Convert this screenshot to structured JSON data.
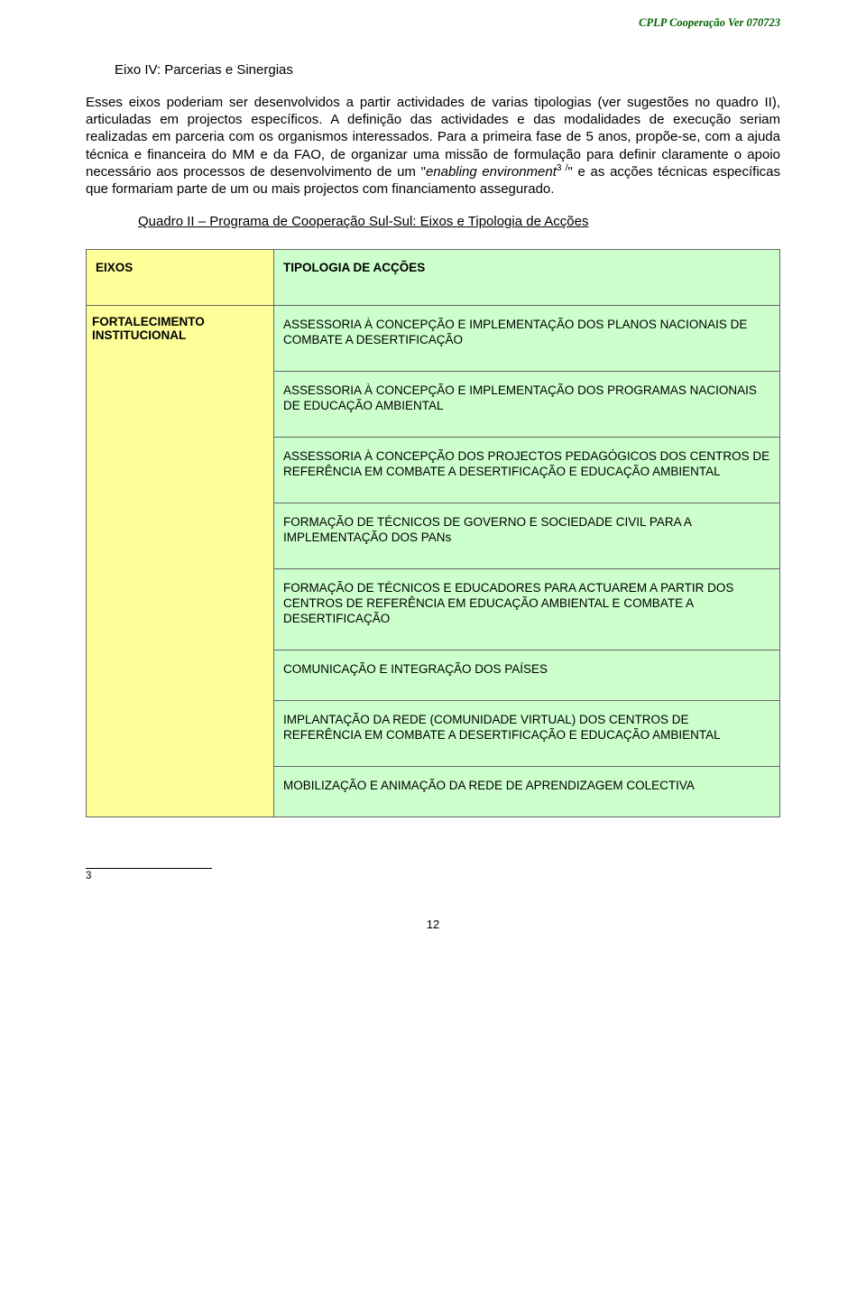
{
  "header": "CPLP Cooperação Ver 070723",
  "section_title": "Eixo IV: Parcerias e Sinergias",
  "paragraph_part1": "Esses eixos poderiam ser desenvolvidos a partir actividades de varias tipologias (ver sugestões no quadro II), articuladas em projectos específicos. A definição das actividades e das modalidades de execução seriam realizadas em parceria com os organismos interessados. Para a primeira fase de 5 anos, propõe-se, com a ajuda técnica e financeira do MM e da FAO, de organizar uma missão de formulação para definir claramente o apoio necessário aos processos de desenvolvimento de um \"",
  "paragraph_italic": "enabling environment",
  "paragraph_super": "3 /",
  "paragraph_part2": "\" e as acções técnicas específicas que formariam parte de um ou mais projectos com financiamento assegurado.",
  "subtitle": "Quadro II – Programa de Cooperação Sul-Sul: Eixos e Tipologia de Acções",
  "table": {
    "col_eixos": "EIXOS",
    "col_tipo": "TIPOLOGIA DE ACÇÕES",
    "eixo_label": "FORTALECIMENTO INSTITUCIONAL",
    "actions": [
      "ASSESSORIA À CONCEPÇÃO E IMPLEMENTAÇÃO DOS PLANOS NACIONAIS DE COMBATE A DESERTIFICAÇÃO",
      "ASSESSORIA À CONCEPÇÃO E IMPLEMENTAÇÃO DOS PROGRAMAS NACIONAIS DE EDUCAÇÃO AMBIENTAL",
      "ASSESSORIA À CONCEPÇÃO DOS PROJECTOS PEDAGÓGICOS DOS CENTROS DE REFERÊNCIA EM COMBATE A DESERTIFICAÇÃO E EDUCAÇÃO AMBIENTAL",
      "FORMAÇÃO DE TÉCNICOS DE GOVERNO E SOCIEDADE CIVIL PARA A IMPLEMENTAÇÃO DOS PANs",
      "FORMAÇÃO DE TÉCNICOS E EDUCADORES PARA ACTUAREM A PARTIR DOS CENTROS DE REFERÊNCIA EM EDUCAÇÃO AMBIENTAL E COMBATE A DESERTIFICAÇÃO",
      "COMUNICAÇÃO E INTEGRAÇÃO DOS PAÍSES",
      "IMPLANTAÇÃO DA REDE (COMUNIDADE VIRTUAL) DOS CENTROS DE REFERÊNCIA EM COMBATE A DESERTIFICAÇÃO E EDUCAÇÃO AMBIENTAL",
      "MOBILIZAÇÃO E ANIMAÇÃO DA REDE DE APRENDIZAGEM COLECTIVA"
    ]
  },
  "footnote": "3",
  "page_number": "12",
  "colors": {
    "left_col_bg": "#ffff99",
    "right_col_bg": "#ccffcc",
    "header_text": "#006400"
  }
}
